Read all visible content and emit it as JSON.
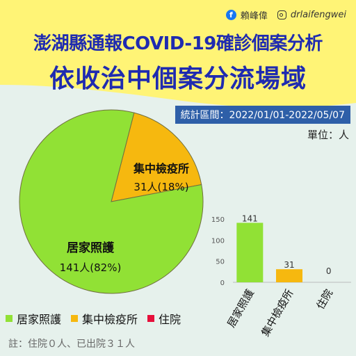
{
  "author": {
    "name": "賴峰偉",
    "handle": "drlaifengwei",
    "fb_icon": "facebook-icon",
    "ig_icon": "instagram-icon"
  },
  "title_line1": "澎湖縣通報COVID-19確診個案分析",
  "title_line2": "依收治中個案分流場域",
  "period": "統計區間：2022/01/01-2022/05/07",
  "unit": "單位：人",
  "colors": {
    "home": "#91e135",
    "quarantine": "#f6b80f",
    "hospital": "#e60f3a",
    "title": "#1f2bb0",
    "yellow_bg": "#fff476"
  },
  "chart_data": [
    {
      "type": "pie",
      "slices": [
        {
          "label": "居家照護",
          "value": 141,
          "value_label": "141人(82%)",
          "color": "#91e135"
        },
        {
          "label": "集中檢疫所",
          "value": 31,
          "value_label": "31人(18%)",
          "color": "#f6b80f"
        },
        {
          "label": "住院",
          "value": 0,
          "color": "#e60f3a"
        }
      ],
      "legend": [
        "居家照護",
        "集中檢疫所",
        "住院"
      ],
      "legend_position": "bottom-left"
    },
    {
      "type": "bar",
      "categories": [
        "居家照護",
        "集中檢疫所",
        "住院"
      ],
      "values": [
        141,
        31,
        0
      ],
      "colors": [
        "#91e135",
        "#f6b80f",
        "#e60f3a"
      ],
      "ylim": [
        0,
        150
      ],
      "yticks": [
        0,
        50,
        100,
        150
      ],
      "grid": false
    }
  ],
  "note": "註：住院０人、已出院３１人"
}
